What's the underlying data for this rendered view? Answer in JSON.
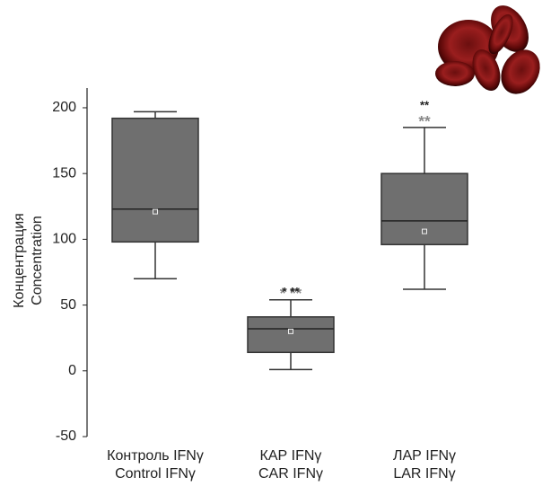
{
  "chart_data": {
    "type": "box",
    "y_label": [
      "Концентрация",
      "Concentration"
    ],
    "categories": [
      "Контроль IFNγ",
      "КАР IFNγ",
      "ЛАР IFNγ"
    ],
    "categories_en": [
      "Control IFNγ",
      "CAR IFNγ",
      "LAR IFNγ"
    ],
    "boxes": [
      {
        "whisker_low": 70,
        "q1": 98,
        "median": 123,
        "mean": 121,
        "q3": 192,
        "whisker_high": 197
      },
      {
        "whisker_low": 1,
        "q1": 14,
        "median": 32,
        "mean": 30,
        "q3": 41,
        "whisker_high": 54
      },
      {
        "whisker_low": 62,
        "q1": 96,
        "median": 114,
        "mean": 106,
        "q3": 150,
        "whisker_high": 185
      }
    ],
    "annotations": [
      {
        "text": "* **",
        "box": 1,
        "color": "#888888"
      },
      {
        "text": "* **",
        "box": 1,
        "color": "#222222"
      },
      {
        "text": "**",
        "box": 2,
        "color": "#888888"
      },
      {
        "text": "**",
        "box": 2,
        "color": "#222222"
      }
    ],
    "color": "#6f6f6f",
    "ylim": [
      -50,
      215
    ],
    "yticks": [
      -50,
      0,
      50,
      100,
      150,
      200
    ]
  }
}
